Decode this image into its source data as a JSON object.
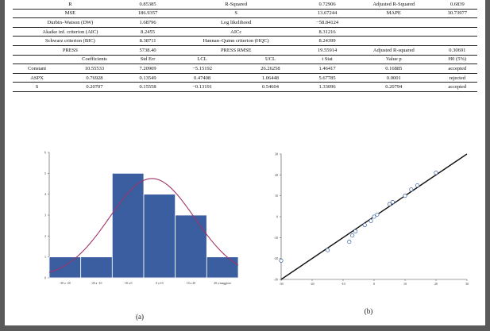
{
  "table": {
    "rows": [
      [
        "R",
        "0.85385",
        "R-Squared",
        "0.72906",
        "Adjusted R-Squared",
        "0.6839"
      ],
      [
        "MSE",
        "186.9357",
        "S",
        "13.67244",
        "MAPE",
        "30.73977"
      ],
      [
        "Durbin–Watson (DW)",
        "1.68796",
        "Log likelihood",
        "−58.84124",
        "",
        ""
      ],
      [
        "Akaike inf. criterion (AIC)",
        "8.2455",
        "AICc",
        "8.31216",
        "",
        ""
      ],
      [
        "Schwarz criterion (BIC)",
        "8.38711",
        "Hannan–Quinn criterion (HQC)",
        "8.24399",
        "",
        ""
      ],
      [
        "PRESS",
        "5738.40",
        "PRESS RMSE",
        "19.55914",
        "Adjusted R-squared",
        "0.30691"
      ]
    ],
    "coef_header": [
      "",
      "Coefficients",
      "Std Err",
      "LCL",
      "UCL",
      "t Stat",
      "Value p",
      "H0 (5%)"
    ],
    "coef_rows": [
      [
        "Constant",
        "10.55533",
        "7.20909",
        "−5.15192",
        "26.26258",
        "1.46417",
        "0.16885",
        "accepted"
      ],
      [
        "ASPX",
        "0.76928",
        "0.13549",
        "0.47408",
        "1.06448",
        "5.67785",
        "0.0001",
        "rejected"
      ]
    ],
    "coef_rows_last": [
      [
        "S",
        "0.20707",
        "0.15558",
        "−0.13191",
        "0.54604",
        "1.33096",
        "0.20794",
        "accepted"
      ]
    ]
  },
  "captions": {
    "a": "(a)",
    "b": "(b)"
  },
  "chart_data": [
    {
      "type": "bar",
      "categories": [
        "-30 a -20",
        "-20 a -10",
        "-10 a 0",
        "0 a 10",
        "10 a 20",
        "20 a maggiore"
      ],
      "values": [
        1,
        1,
        5,
        4,
        3,
        1
      ],
      "ylim": [
        0,
        6
      ],
      "yticks": [
        "0",
        "1",
        "2",
        "3",
        "4",
        "5",
        "6"
      ],
      "grid": false,
      "colors": {
        "bar": "#3a5ea0",
        "curve": "#a0336a"
      },
      "overlay": "normal-curve"
    },
    {
      "type": "scatter",
      "xlim": [
        -30,
        30
      ],
      "ylim": [
        -30,
        30
      ],
      "xticks": [
        "-30",
        "-20",
        "-10",
        "0",
        "10",
        "20",
        "30"
      ],
      "yticks": [
        "-30",
        "-20",
        "-10",
        "0",
        "10",
        "20",
        "30"
      ],
      "points": [
        [
          -30,
          -21
        ],
        [
          -15,
          -16
        ],
        [
          -8,
          -12
        ],
        [
          -7,
          -9
        ],
        [
          -6,
          -7
        ],
        [
          -3,
          -4
        ],
        [
          -1,
          -2
        ],
        [
          0,
          0
        ],
        [
          1,
          1
        ],
        [
          5,
          6
        ],
        [
          6,
          7
        ],
        [
          10,
          10
        ],
        [
          12,
          13
        ],
        [
          14,
          15
        ],
        [
          20,
          21
        ]
      ],
      "line": [
        [
          -30,
          -30
        ],
        [
          30,
          30
        ]
      ],
      "colors": {
        "point": "#3a5ea0",
        "line": "#111111"
      }
    }
  ]
}
